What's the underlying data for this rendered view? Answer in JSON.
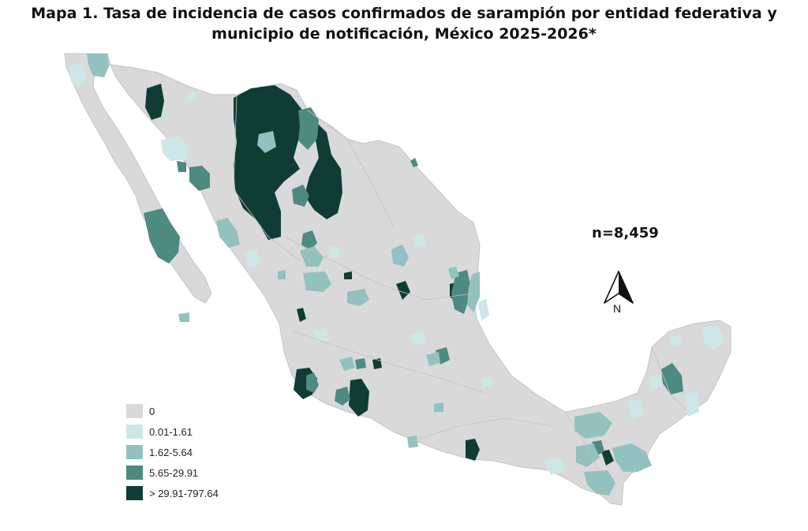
{
  "title": {
    "line1": "Mapa 1. Tasa de incidencia de casos confirmados de sarampión por entidad federativa y",
    "line2": "municipio de  notificación, México 2025-2026*"
  },
  "count_label": "n=8,459",
  "north_arrow": {
    "icon": "north-arrow-icon",
    "letter": "N"
  },
  "legend": {
    "items": [
      {
        "label": "0",
        "color": "#d9d9d9"
      },
      {
        "label": "0.01-1.61",
        "color": "#cde7e6"
      },
      {
        "label": "1.62-5.64",
        "color": "#92c1bf"
      },
      {
        "label": "5.65-29.91",
        "color": "#4d8a7f"
      },
      {
        "label": "> 29.91-797.64",
        "color": "#0f3d34"
      }
    ]
  }
}
